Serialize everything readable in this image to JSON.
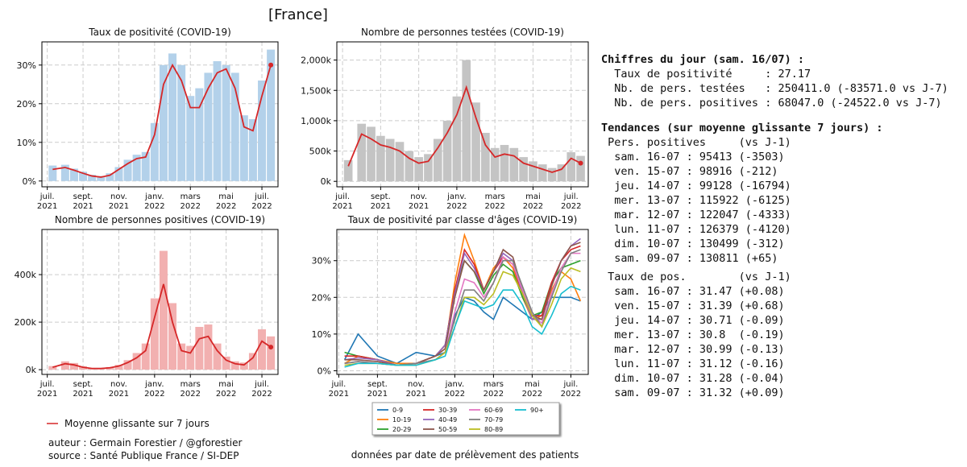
{
  "header": {
    "title": "[France]"
  },
  "legend": "Moyenne glissante sur 7 jours",
  "chart_data": [
    {
      "type": "combo",
      "title": "Taux de positivité (COVID-19)",
      "x": [
        0.3,
        1,
        1.5,
        2,
        2.5,
        3,
        3.5,
        4,
        4.5,
        5,
        5.5,
        6,
        6.5,
        7,
        7.5,
        8,
        8.5,
        9,
        9.5,
        10,
        10.5,
        11,
        11.5,
        12,
        12.5
      ],
      "xlim": [
        -0.3,
        12.9
      ],
      "xticks": [
        {
          "value": 0,
          "label": "juil. 2021"
        },
        {
          "value": 2,
          "label": "sept. 2021"
        },
        {
          "value": 4,
          "label": "nov. 2021"
        },
        {
          "value": 6,
          "label": "janv. 2022"
        },
        {
          "value": 8,
          "label": "mars 2022"
        },
        {
          "value": 10,
          "label": "mai 2022"
        },
        {
          "value": 12,
          "label": "juil. 2022"
        }
      ],
      "ylim": [
        -1.5,
        36
      ],
      "yticks": [
        {
          "value": 0,
          "label": "0%"
        },
        {
          "value": 10,
          "label": "10%"
        },
        {
          "value": 20,
          "label": "20%"
        },
        {
          "value": 30,
          "label": "30%"
        }
      ],
      "grid": true,
      "series": [
        {
          "color": "#b3d1ea",
          "values": [
            4,
            4.2,
            3.2,
            2.4,
            1.6,
            1.3,
            2,
            3.6,
            5.5,
            6.8,
            7.5,
            15,
            30,
            33,
            30,
            22,
            24,
            28,
            31,
            30,
            28,
            17,
            16,
            26,
            34
          ]
        },
        {
          "color": "#d62728",
          "values": [
            3,
            3.5,
            2.8,
            2,
            1.3,
            1,
            1.5,
            3,
            4.5,
            5.8,
            6.2,
            12,
            25,
            30,
            26,
            19,
            19,
            24,
            28,
            29,
            24,
            14,
            13,
            22,
            30
          ]
        }
      ]
    },
    {
      "type": "combo",
      "title": "Nombre de personnes testées (COVID-19)",
      "x": [
        0.3,
        1,
        1.5,
        2,
        2.5,
        3,
        3.5,
        4,
        4.5,
        5,
        5.5,
        6,
        6.5,
        7,
        7.5,
        8,
        8.5,
        9,
        9.5,
        10,
        10.5,
        11,
        11.5,
        12,
        12.5
      ],
      "xlim": [
        -0.3,
        12.9
      ],
      "xticks": [
        {
          "value": 0,
          "label": "juil. 2021"
        },
        {
          "value": 2,
          "label": "sept. 2021"
        },
        {
          "value": 4,
          "label": "nov. 2021"
        },
        {
          "value": 6,
          "label": "janv. 2022"
        },
        {
          "value": 8,
          "label": "mars 2022"
        },
        {
          "value": 10,
          "label": "mai 2022"
        },
        {
          "value": 12,
          "label": "juil. 2022"
        }
      ],
      "ylim": [
        -90000,
        2300000
      ],
      "yticks": [
        {
          "value": 0,
          "label": "0k"
        },
        {
          "value": 500000,
          "label": "500k"
        },
        {
          "value": 1000000,
          "label": "1,000k"
        },
        {
          "value": 1500000,
          "label": "1,500k"
        },
        {
          "value": 2000000,
          "label": "2,000k"
        }
      ],
      "grid": true,
      "series": [
        {
          "color": "#c4c4c4",
          "values": [
            350000,
            950000,
            900000,
            750000,
            700000,
            650000,
            500000,
            400000,
            450000,
            700000,
            1000000,
            1400000,
            2000000,
            1300000,
            800000,
            550000,
            600000,
            550000,
            400000,
            330000,
            280000,
            220000,
            280000,
            480000,
            420000
          ]
        },
        {
          "color": "#d62728",
          "values": [
            250000,
            780000,
            700000,
            600000,
            560000,
            500000,
            380000,
            300000,
            330000,
            550000,
            800000,
            1100000,
            1550000,
            1050000,
            600000,
            400000,
            450000,
            420000,
            300000,
            250000,
            200000,
            150000,
            200000,
            380000,
            300000
          ]
        }
      ]
    },
    {
      "type": "combo",
      "title": "Nombre de personnes positives (COVID-19)",
      "x": [
        0.3,
        1,
        1.5,
        2,
        2.5,
        3,
        3.5,
        4,
        4.5,
        5,
        5.5,
        6,
        6.5,
        7,
        7.5,
        8,
        8.5,
        9,
        9.5,
        10,
        10.5,
        11,
        11.5,
        12,
        12.5
      ],
      "xlim": [
        -0.3,
        12.9
      ],
      "xticks": [
        {
          "value": 0,
          "label": "juil. 2021"
        },
        {
          "value": 2,
          "label": "sept. 2021"
        },
        {
          "value": 4,
          "label": "nov. 2021"
        },
        {
          "value": 6,
          "label": "janv. 2022"
        },
        {
          "value": 8,
          "label": "mars 2022"
        },
        {
          "value": 10,
          "label": "mai 2022"
        },
        {
          "value": 12,
          "label": "juil. 2022"
        }
      ],
      "ylim": [
        -20000,
        590000
      ],
      "yticks": [
        {
          "value": 0,
          "label": "0k"
        },
        {
          "value": 200000,
          "label": "200k"
        },
        {
          "value": 400000,
          "label": "400k"
        }
      ],
      "grid": true,
      "series": [
        {
          "color": "#f2b0b0",
          "values": [
            15000,
            35000,
            28000,
            14000,
            7000,
            7000,
            11000,
            20000,
            40000,
            70000,
            110000,
            300000,
            500000,
            280000,
            110000,
            100000,
            180000,
            190000,
            110000,
            55000,
            35000,
            30000,
            70000,
            170000,
            140000
          ]
        },
        {
          "color": "#d62728",
          "values": [
            10000,
            25000,
            20000,
            10000,
            5000,
            5000,
            8000,
            15000,
            30000,
            50000,
            80000,
            220000,
            360000,
            200000,
            80000,
            70000,
            130000,
            140000,
            80000,
            40000,
            25000,
            20000,
            50000,
            120000,
            95000
          ]
        }
      ]
    },
    {
      "type": "line",
      "title": "Taux de positivité par classe d'âges (COVID-19)",
      "x": [
        0.3,
        1,
        2,
        3,
        4,
        5,
        5.5,
        6,
        6.5,
        7,
        7.5,
        8,
        8.5,
        9,
        9.5,
        10,
        10.5,
        11,
        11.5,
        12,
        12.5
      ],
      "xlim": [
        -0.1,
        12.9
      ],
      "xticks": [
        {
          "value": 0,
          "label": "juil. 2021"
        },
        {
          "value": 2,
          "label": "sept. 2021"
        },
        {
          "value": 4,
          "label": "nov. 2021"
        },
        {
          "value": 6,
          "label": "janv. 2022"
        },
        {
          "value": 8,
          "label": "mars 2022"
        },
        {
          "value": 10,
          "label": "mai 2022"
        },
        {
          "value": 12,
          "label": "juil. 2022"
        }
      ],
      "ylim": [
        -1,
        38.5
      ],
      "yticks": [
        {
          "value": 0,
          "label": "0%"
        },
        {
          "value": 10,
          "label": "10%"
        },
        {
          "value": 20,
          "label": "20%"
        },
        {
          "value": 30,
          "label": "30%"
        }
      ],
      "grid": true,
      "series": [
        {
          "name": "0-9",
          "color": "#1f77b4",
          "values": [
            3,
            10,
            4,
            2,
            5,
            4,
            5,
            15,
            20,
            19,
            16,
            14,
            20,
            18,
            16,
            14,
            16,
            20,
            20,
            20,
            19
          ]
        },
        {
          "name": "10-19",
          "color": "#ff7f0e",
          "values": [
            2,
            4,
            3,
            2,
            2,
            4,
            6,
            24,
            37,
            30,
            22,
            28,
            31,
            28,
            20,
            14,
            15,
            22,
            27,
            25,
            19
          ]
        },
        {
          "name": "20-29",
          "color": "#2ca02c",
          "values": [
            5,
            4,
            3,
            1.5,
            2,
            4,
            7,
            22,
            30,
            27,
            21,
            26,
            29,
            27,
            20,
            15,
            16,
            24,
            28,
            29,
            30
          ]
        },
        {
          "name": "30-39",
          "color": "#d62728",
          "values": [
            4,
            4,
            3,
            1.5,
            2,
            4,
            7,
            22,
            33,
            29,
            22,
            27,
            31,
            29,
            21,
            15,
            15,
            24,
            30,
            33,
            34
          ]
        },
        {
          "name": "40-49",
          "color": "#9467bd",
          "values": [
            3,
            3.5,
            3,
            1.5,
            2,
            4,
            7,
            21,
            32,
            28,
            22,
            27,
            32,
            30,
            21,
            14,
            14,
            23,
            30,
            34,
            36
          ]
        },
        {
          "name": "50-59",
          "color": "#8c564b",
          "values": [
            3,
            3,
            2.5,
            1.5,
            2,
            4,
            6,
            20,
            30,
            27,
            22,
            27,
            33,
            31,
            22,
            15,
            14,
            23,
            30,
            34,
            35
          ]
        },
        {
          "name": "60-69",
          "color": "#e377c2",
          "values": [
            2,
            2.5,
            2,
            1.5,
            2,
            3,
            5,
            16,
            25,
            24,
            20,
            24,
            31,
            29,
            22,
            15,
            13,
            21,
            28,
            32,
            32
          ]
        },
        {
          "name": "70-79",
          "color": "#7f7f7f",
          "values": [
            2,
            2.5,
            2,
            1.5,
            2,
            3,
            5,
            14,
            22,
            22,
            19,
            24,
            30,
            30,
            23,
            16,
            12,
            20,
            27,
            32,
            33
          ]
        },
        {
          "name": "80-89",
          "color": "#bcbd22",
          "values": [
            1.5,
            2,
            2,
            1.5,
            1.5,
            3,
            5,
            12,
            20,
            20,
            18,
            21,
            27,
            26,
            21,
            15,
            12,
            18,
            25,
            28,
            27
          ]
        },
        {
          "name": "90+",
          "color": "#17becf",
          "values": [
            1,
            2,
            2,
            1.5,
            1.5,
            3,
            4,
            12,
            19,
            18,
            17,
            18,
            22,
            22,
            18,
            12,
            10,
            15,
            21,
            23,
            22
          ]
        }
      ]
    }
  ],
  "panel": {
    "title": "Chiffres du jour (sam. 16/07) :",
    "today": [
      "  Taux de positivité     : 27.17",
      "  Nb. de pers. testées   : 250411.0 (-83571.0 vs J-7)",
      "  Nb. de pers. positives : 68047.0 (-24522.0 vs J-7)"
    ],
    "trend_title": "Tendances (sur moyenne glissante 7 jours) :",
    "pos_header": " Pers. positives     (vs J-1)",
    "pos_lines": [
      "  sam. 16-07 : 95413 (-3503)",
      "  ven. 15-07 : 98916 (-212)",
      "  jeu. 14-07 : 99128 (-16794)",
      "  mer. 13-07 : 115922 (-6125)",
      "  mar. 12-07 : 122047 (-4333)",
      "  lun. 11-07 : 126379 (-4120)",
      "  dim. 10-07 : 130499 (-312)",
      "  sam. 09-07 : 130811 (+65)"
    ],
    "rate_header": " Taux de pos.        (vs J-1)",
    "rate_lines": [
      "  sam. 16-07 : 31.47 (+0.08)",
      "  ven. 15-07 : 31.39 (+0.68)",
      "  jeu. 14-07 : 30.71 (-0.09)",
      "  mer. 13-07 : 30.8  (-0.19)",
      "  mar. 12-07 : 30.99 (-0.13)",
      "  lun. 11-07 : 31.12 (-0.16)",
      "  dim. 10-07 : 31.28 (-0.04)",
      "  sam. 09-07 : 31.32 (+0.09)"
    ]
  },
  "footer": {
    "author": "auteur : Germain Forestier / @gforestier",
    "source": "source : Santé Publique France / SI-DEP",
    "note": "données par date de prélèvement des patients"
  }
}
